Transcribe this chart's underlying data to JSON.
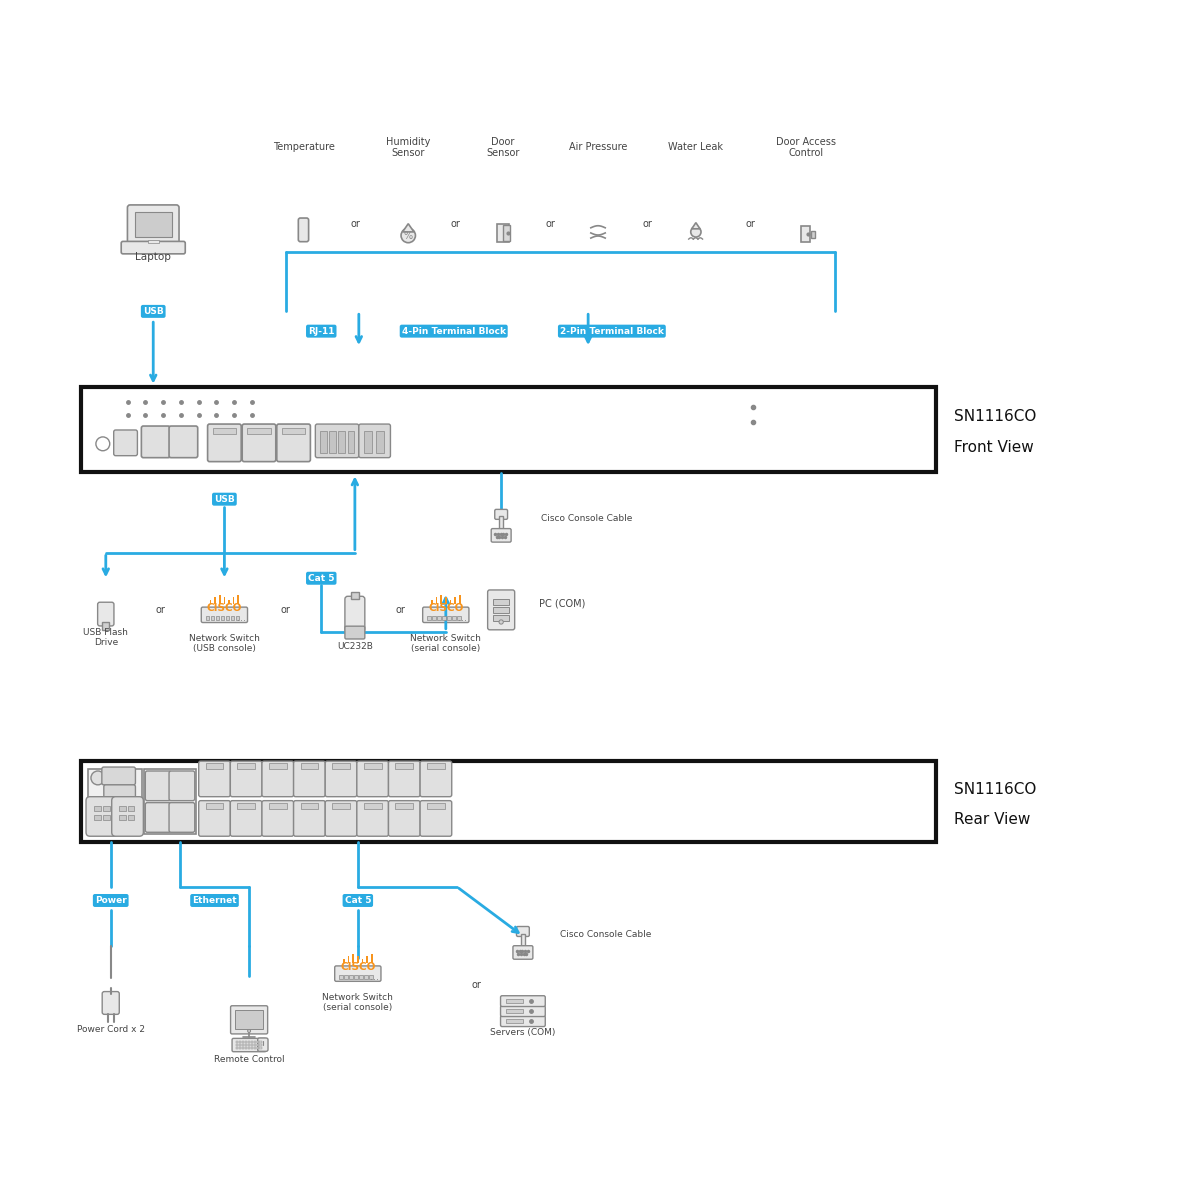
{
  "bg_color": "#ffffff",
  "blue": "#29abe2",
  "light_gray": "#aaaaaa",
  "mid_gray": "#888888",
  "dark_gray": "#444444",
  "orange": "#f7941d",
  "black": "#111111",
  "device_name": "SN1116CO",
  "front_view_label": "Front View",
  "rear_view_label": "Rear View",
  "sensor_labels": [
    "Temperature",
    "Humidity\nSensor",
    "Door\nSensor",
    "Air Pressure",
    "Water Leak",
    "Door Access\nControl"
  ],
  "or_label": "or",
  "rj11_label": "RJ-11",
  "pin4_label": "4-Pin Terminal Block",
  "pin2_label": "2-Pin Terminal Block",
  "usb_label": "USB",
  "cat5_label": "Cat 5",
  "laptop_label": "Laptop",
  "usb_flash_label": "USB Flash\nDrive",
  "net_switch_usb_label": "Network Switch\n(USB console)",
  "net_switch_serial_label": "Network Switch\n(serial console)",
  "uc232b_label": "UC232B",
  "cisco_console_label": "Cisco Console Cable",
  "pc_com_label": "PC (COM)",
  "power_label": "Power",
  "ethernet_label": "Ethernet",
  "power_cord_label": "Power Cord x 2",
  "remote_ctrl_label": "Remote Control",
  "servers_label": "Servers (COM)",
  "cisco_text": "CISCO"
}
